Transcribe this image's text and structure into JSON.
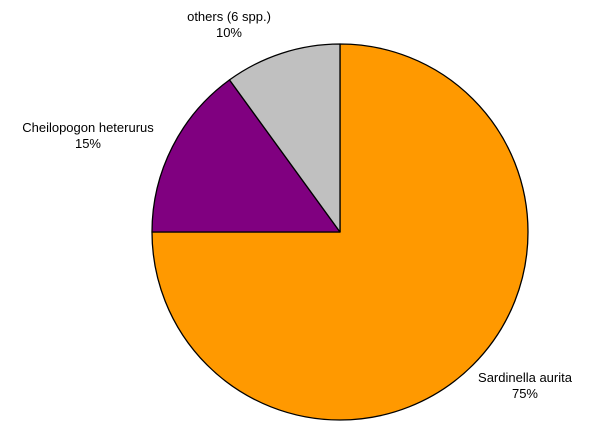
{
  "chart_data": {
    "type": "pie",
    "slices": [
      {
        "label": "Sardinella aurita",
        "percent_label": "75%",
        "value": 75,
        "color": "#FF9900"
      },
      {
        "label": "Cheilopogon heterurus",
        "percent_label": "15%",
        "value": 15,
        "color": "#800080"
      },
      {
        "label": "others (6 spp.)",
        "percent_label": "10%",
        "value": 10,
        "color": "#C0C0C0"
      }
    ],
    "start": "12 o'clock",
    "direction": "clockwise",
    "legend": "none"
  }
}
